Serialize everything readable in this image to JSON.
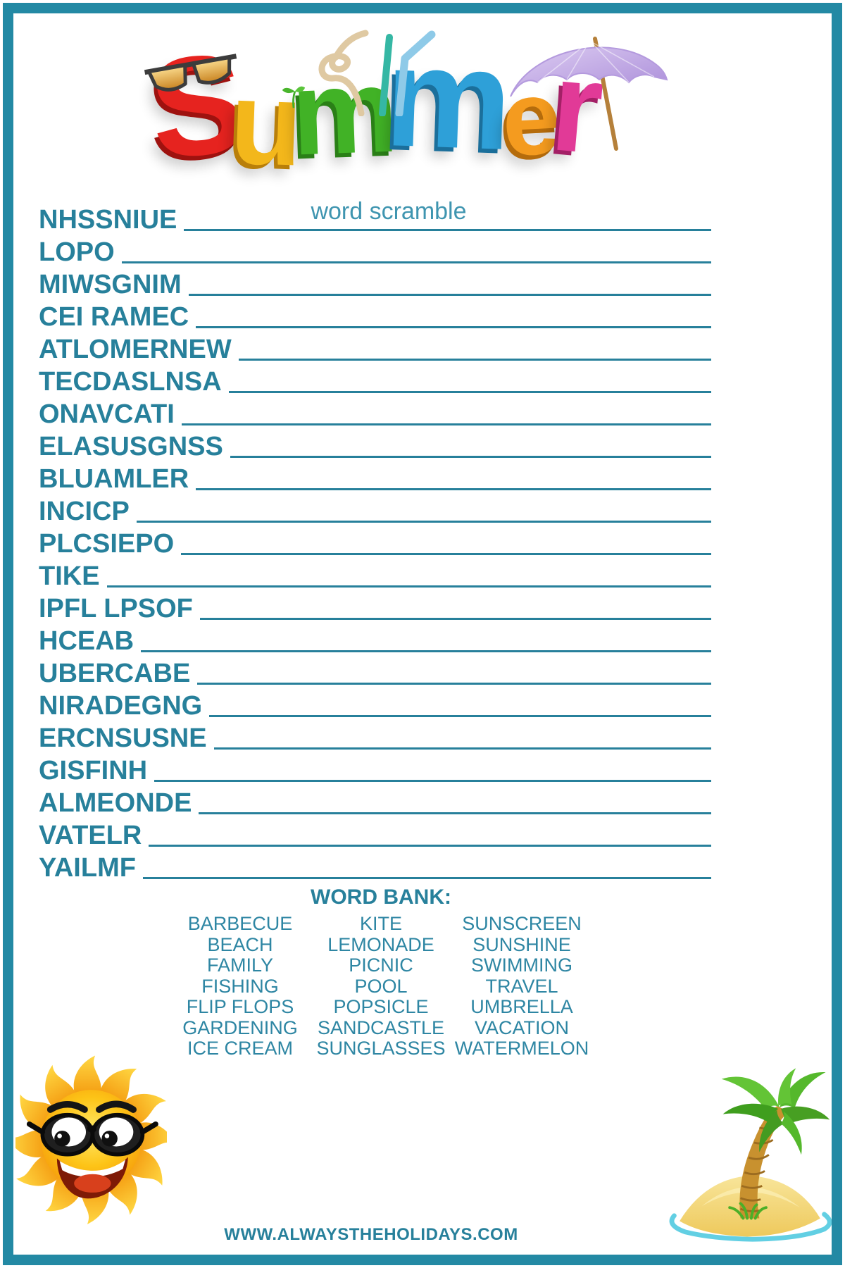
{
  "colors": {
    "border_teal": "#2389a4",
    "text_teal": "#27809b",
    "subtitle_teal": "#3f95b0",
    "word_bank_teal": "#2e86a3"
  },
  "header": {
    "title_word": "Summer",
    "title_letters": [
      {
        "char": "S",
        "color": "#e6231f",
        "shadow": "#9e120f"
      },
      {
        "char": "u",
        "color": "#f3b71b",
        "shadow": "#b97f0a"
      },
      {
        "char": "m",
        "color": "#41b226",
        "shadow": "#2a7f17"
      },
      {
        "char": "m",
        "color": "#2ea0d8",
        "shadow": "#1b6f9b"
      },
      {
        "char": "e",
        "color": "#f49b1f",
        "shadow": "#b56c0c"
      },
      {
        "char": "r",
        "color": "#e13a97",
        "shadow": "#a32066"
      }
    ],
    "subtitle": "word scramble"
  },
  "scramble": {
    "words": [
      "NHSSNIUE",
      "LOPO",
      "MIWSGNIM",
      "CEI RAMEC",
      "ATLOMERNEW",
      "TECDASLNSA",
      "ONAVCATI",
      "ELASUSGNSS",
      "BLUAMLER",
      "INCICP",
      "PLCSIEPO",
      "TIKE",
      "IPFL LPSOF",
      "HCEAB",
      "UBERCABE",
      "NIRADEGNG",
      "ERCNSUSNE",
      "GISFINH",
      "ALMEONDE",
      "VATELR",
      "YAILMF"
    ]
  },
  "word_bank": {
    "heading": "WORD BANK:",
    "columns": [
      [
        "BARBECUE",
        "BEACH",
        "FAMILY",
        "FISHING",
        "FLIP FLOPS",
        "GARDENING",
        "ICE CREAM"
      ],
      [
        "KITE",
        "LEMONADE",
        "PICNIC",
        "POOL",
        "POPSICLE",
        "SANDCASTLE",
        "SUNGLASSES"
      ],
      [
        "SUNSCREEN",
        "SUNSHINE",
        "SWIMMING",
        "TRAVEL",
        "UMBRELLA",
        "VACATION",
        "WATERMELON"
      ]
    ]
  },
  "footer": {
    "url": "WWW.ALWAYSTHEHOLIDAYS.COM"
  },
  "icons": {
    "title_sunglasses": "sunglasses-icon",
    "title_straws": "drinking-straws-icon",
    "title_umbrella": "beach-umbrella-icon",
    "title_sprout": "leaf-sprout-icon",
    "bottom_left": "sun-with-sunglasses-illustration",
    "bottom_right": "palm-tree-island-illustration"
  }
}
